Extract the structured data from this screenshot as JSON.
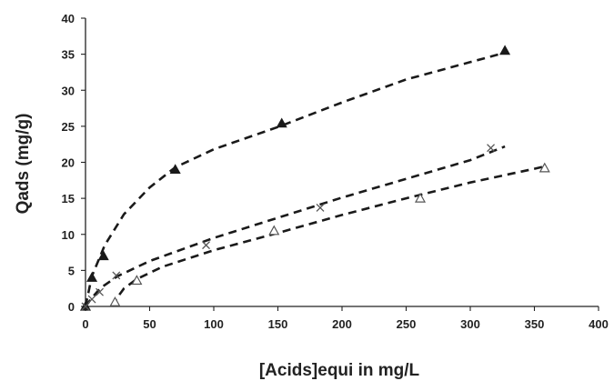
{
  "chart_data": {
    "type": "scatter",
    "title": "",
    "xlabel": "[Acids]equi in mg/L",
    "ylabel": "Qads (mg/g)",
    "xlim": [
      0,
      400
    ],
    "ylim": [
      0,
      40
    ],
    "xticks": [
      0,
      50,
      100,
      150,
      200,
      250,
      300,
      350,
      400
    ],
    "yticks": [
      0,
      5,
      10,
      15,
      20,
      25,
      30,
      35,
      40
    ],
    "grid": false,
    "legend": "none",
    "series": [
      {
        "marker": "filled-triangle",
        "color": "#1a1a1a",
        "points": [
          [
            0,
            0
          ],
          [
            5,
            4
          ],
          [
            14,
            7
          ],
          [
            70,
            19
          ],
          [
            153,
            25.4
          ],
          [
            327,
            35.5
          ]
        ],
        "fit_line": [
          [
            0,
            0
          ],
          [
            5,
            4.2
          ],
          [
            15,
            8.5
          ],
          [
            30,
            12.8
          ],
          [
            50,
            16.5
          ],
          [
            70,
            19.3
          ],
          [
            100,
            21.8
          ],
          [
            150,
            24.9
          ],
          [
            200,
            28.3
          ],
          [
            250,
            31.5
          ],
          [
            300,
            33.9
          ],
          [
            327,
            35.2
          ]
        ]
      },
      {
        "marker": "x",
        "color": "#555555",
        "points": [
          [
            0,
            0
          ],
          [
            5,
            1
          ],
          [
            11,
            2
          ],
          [
            24,
            4.3
          ],
          [
            94,
            8.5
          ],
          [
            183,
            13.7
          ],
          [
            316,
            22
          ]
        ],
        "fit_line": [
          [
            0,
            0
          ],
          [
            5,
            1.2
          ],
          [
            12,
            2.6
          ],
          [
            25,
            4.2
          ],
          [
            50,
            6.3
          ],
          [
            100,
            9.5
          ],
          [
            150,
            12.3
          ],
          [
            200,
            15.1
          ],
          [
            250,
            17.7
          ],
          [
            300,
            20.3
          ],
          [
            327,
            22.2
          ]
        ]
      },
      {
        "marker": "hollow-triangle",
        "color": "#555555",
        "points": [
          [
            23,
            0.6
          ],
          [
            40,
            3.6
          ],
          [
            147,
            10.5
          ],
          [
            261,
            15
          ],
          [
            358,
            19.2
          ]
        ],
        "fit_line": [
          [
            21,
            0
          ],
          [
            25,
            1.3
          ],
          [
            30,
            2.5
          ],
          [
            40,
            3.8
          ],
          [
            60,
            5.5
          ],
          [
            100,
            7.8
          ],
          [
            150,
            10.2
          ],
          [
            200,
            12.7
          ],
          [
            250,
            15
          ],
          [
            300,
            17.2
          ],
          [
            350,
            19.1
          ],
          [
            357,
            19.4
          ]
        ]
      }
    ]
  }
}
